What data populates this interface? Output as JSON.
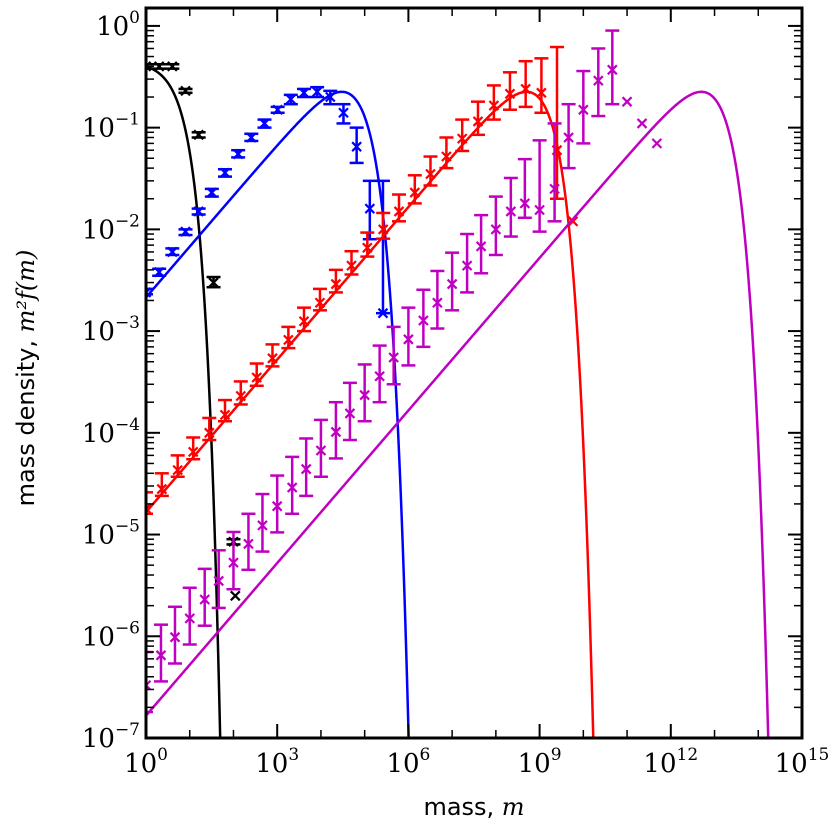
{
  "chart_data": {
    "type": "scatter",
    "title": "",
    "xlabel_text": "mass, ",
    "xlabel_var": "m",
    "ylabel_text": "mass density, ",
    "ylabel_var": "m²f(m)",
    "x_scale": "log",
    "y_scale": "log",
    "xlim": [
      1,
      1000000000000000.0
    ],
    "ylim": [
      1e-07,
      1.5
    ],
    "x_ticks": [
      {
        "value": 1,
        "base": "10",
        "exp": "0"
      },
      {
        "value": 1000,
        "base": "10",
        "exp": "3"
      },
      {
        "value": 1000000,
        "base": "10",
        "exp": "6"
      },
      {
        "value": 1000000000,
        "base": "10",
        "exp": "9"
      },
      {
        "value": 1000000000000,
        "base": "10",
        "exp": "12"
      },
      {
        "value": 1000000000000000,
        "base": "10",
        "exp": "15"
      }
    ],
    "y_ticks": [
      {
        "value": 1e-07,
        "base": "10",
        "exp": "−7"
      },
      {
        "value": 1e-06,
        "base": "10",
        "exp": "−6"
      },
      {
        "value": 1e-05,
        "base": "10",
        "exp": "−5"
      },
      {
        "value": 0.0001,
        "base": "10",
        "exp": "−4"
      },
      {
        "value": 0.001,
        "base": "10",
        "exp": "−3"
      },
      {
        "value": 0.01,
        "base": "10",
        "exp": "−2"
      },
      {
        "value": 0.1,
        "base": "10",
        "exp": "−1"
      },
      {
        "value": 1,
        "base": "10",
        "exp": "0"
      }
    ],
    "grid": false,
    "series": [
      {
        "color": "#000000",
        "curve": {
          "model": "exp_cutoff",
          "peak_y": 0.45,
          "x_scale": 2.0,
          "ylim_low": 1e-07
        },
        "points": [
          {
            "x": 1.0,
            "y": 0.4,
            "lo": 0.38,
            "hi": 0.42
          },
          {
            "x": 2.0,
            "y": 0.4,
            "lo": 0.38,
            "hi": 0.42
          },
          {
            "x": 4.0,
            "y": 0.4,
            "lo": 0.38,
            "hi": 0.42
          },
          {
            "x": 8.0,
            "y": 0.23,
            "lo": 0.22,
            "hi": 0.24
          },
          {
            "x": 16.0,
            "y": 0.085,
            "lo": 0.08,
            "hi": 0.09
          },
          {
            "x": 35.0,
            "y": 0.003,
            "lo": 0.0027,
            "hi": 0.0034
          },
          {
            "x": 100.0,
            "y": 8.5e-06,
            "lo": 8e-06,
            "hi": 9e-06
          },
          {
            "x": 110.0,
            "y": 2.5e-06,
            "lo": 2.5e-06,
            "hi": 2.5e-06
          }
        ]
      },
      {
        "color": "#0000ff",
        "curve": {
          "model": "power_cutoff",
          "peak_y": 0.225,
          "x_peak": 30000,
          "ylim_low": 1e-07
        },
        "points": [
          {
            "x": 1.0,
            "y": 0.0024,
            "lo": 0.0023,
            "hi": 0.0026
          },
          {
            "x": 2.0,
            "y": 0.0038,
            "lo": 0.0035,
            "hi": 0.0041
          },
          {
            "x": 4.0,
            "y": 0.006,
            "lo": 0.0056,
            "hi": 0.0065
          },
          {
            "x": 8.0,
            "y": 0.0095,
            "lo": 0.0088,
            "hi": 0.01
          },
          {
            "x": 16.0,
            "y": 0.015,
            "lo": 0.014,
            "hi": 0.016
          },
          {
            "x": 32.0,
            "y": 0.023,
            "lo": 0.021,
            "hi": 0.025
          },
          {
            "x": 64.0,
            "y": 0.036,
            "lo": 0.033,
            "hi": 0.039
          },
          {
            "x": 128.0,
            "y": 0.055,
            "lo": 0.051,
            "hi": 0.06
          },
          {
            "x": 256.0,
            "y": 0.08,
            "lo": 0.074,
            "hi": 0.087
          },
          {
            "x": 512.0,
            "y": 0.11,
            "lo": 0.1,
            "hi": 0.12
          },
          {
            "x": 1024.0,
            "y": 0.15,
            "lo": 0.14,
            "hi": 0.16
          },
          {
            "x": 2048.0,
            "y": 0.19,
            "lo": 0.17,
            "hi": 0.21
          },
          {
            "x": 4096.0,
            "y": 0.22,
            "lo": 0.2,
            "hi": 0.24
          },
          {
            "x": 8192.0,
            "y": 0.225,
            "lo": 0.2,
            "hi": 0.25
          },
          {
            "x": 16384.0,
            "y": 0.2,
            "lo": 0.17,
            "hi": 0.23
          },
          {
            "x": 32768.0,
            "y": 0.14,
            "lo": 0.11,
            "hi": 0.17
          },
          {
            "x": 65536.0,
            "y": 0.065,
            "lo": 0.045,
            "hi": 0.1
          },
          {
            "x": 131072.0,
            "y": 0.016,
            "lo": 0.008,
            "hi": 0.03
          },
          {
            "x": 262144.0,
            "y": 0.0015,
            "lo": 0.0015,
            "hi": 0.03
          }
        ]
      },
      {
        "color": "#ff0000",
        "curve": {
          "model": "power_cutoff",
          "peak_y": 0.225,
          "x_peak": 500000000.0,
          "ylim_low": 1e-07
        },
        "points": [
          {
            "x": 1.0,
            "y": 1.8e-05,
            "lo": 1.6e-05,
            "hi": 2.6e-05
          },
          {
            "x": 2.3,
            "y": 2.8e-05,
            "lo": 2.4e-05,
            "hi": 4e-05
          },
          {
            "x": 5.3,
            "y": 4.3e-05,
            "lo": 3.7e-05,
            "hi": 6e-05
          },
          {
            "x": 12.0,
            "y": 6.5e-05,
            "lo": 5.5e-05,
            "hi": 9e-05
          },
          {
            "x": 28.0,
            "y": 0.0001,
            "lo": 8.5e-05,
            "hi": 0.00014
          },
          {
            "x": 64.0,
            "y": 0.00015,
            "lo": 0.00013,
            "hi": 0.00021
          },
          {
            "x": 147.0,
            "y": 0.00023,
            "lo": 0.00019,
            "hi": 0.00032
          },
          {
            "x": 340.0,
            "y": 0.00035,
            "lo": 0.00029,
            "hi": 0.00048
          },
          {
            "x": 780.0,
            "y": 0.00054,
            "lo": 0.00045,
            "hi": 0.00074
          },
          {
            "x": 1800.0,
            "y": 0.00082,
            "lo": 0.00068,
            "hi": 0.0011
          },
          {
            "x": 4100.0,
            "y": 0.00125,
            "lo": 0.001,
            "hi": 0.0017
          },
          {
            "x": 9500.0,
            "y": 0.0019,
            "lo": 0.0016,
            "hi": 0.0026
          },
          {
            "x": 22000.0,
            "y": 0.0029,
            "lo": 0.0024,
            "hi": 0.004
          },
          {
            "x": 50000.0,
            "y": 0.0044,
            "lo": 0.0036,
            "hi": 0.0061
          },
          {
            "x": 115000.0,
            "y": 0.0066,
            "lo": 0.0054,
            "hi": 0.0093
          },
          {
            "x": 265000.0,
            "y": 0.01,
            "lo": 0.0081,
            "hi": 0.0145
          },
          {
            "x": 610000.0,
            "y": 0.015,
            "lo": 0.012,
            "hi": 0.022
          },
          {
            "x": 1400000.0,
            "y": 0.023,
            "lo": 0.018,
            "hi": 0.034
          },
          {
            "x": 3200000.0,
            "y": 0.035,
            "lo": 0.027,
            "hi": 0.052
          },
          {
            "x": 7400000.0,
            "y": 0.052,
            "lo": 0.04,
            "hi": 0.08
          },
          {
            "x": 17000000.0,
            "y": 0.078,
            "lo": 0.059,
            "hi": 0.12
          },
          {
            "x": 39000000.0,
            "y": 0.115,
            "lo": 0.085,
            "hi": 0.18
          },
          {
            "x": 90000000.0,
            "y": 0.165,
            "lo": 0.12,
            "hi": 0.26
          },
          {
            "x": 210000000.0,
            "y": 0.215,
            "lo": 0.15,
            "hi": 0.35
          },
          {
            "x": 480000000.0,
            "y": 0.24,
            "lo": 0.16,
            "hi": 0.45
          },
          {
            "x": 1100000000.0,
            "y": 0.22,
            "lo": 0.14,
            "hi": 0.48
          },
          {
            "x": 2500000000.0,
            "y": 0.06,
            "lo": 0.02,
            "hi": 0.62
          },
          {
            "x": 5800000000.0,
            "y": 0.012,
            "lo": 0.012,
            "hi": 0.012
          }
        ]
      },
      {
        "color": "#c000c0",
        "curve": {
          "model": "power_cutoff",
          "peak_y": 0.225,
          "x_peak": 5000000000000.0,
          "ylim_low": 1e-07
        },
        "points": [
          {
            "x": 1.0,
            "y": 3.3e-07,
            "lo": 1.8e-07,
            "hi": 7e-07
          },
          {
            "x": 2.2,
            "y": 6.5e-07,
            "lo": 3.6e-07,
            "hi": 1.3e-06
          },
          {
            "x": 4.6,
            "y": 9.8e-07,
            "lo": 5.4e-07,
            "hi": 1.95e-06
          },
          {
            "x": 10.0,
            "y": 1.5e-06,
            "lo": 8.3e-07,
            "hi": 3e-06
          },
          {
            "x": 22.0,
            "y": 2.3e-06,
            "lo": 1.27e-06,
            "hi": 4.6e-06
          },
          {
            "x": 46.0,
            "y": 3.5e-06,
            "lo": 1.9e-06,
            "hi": 7e-06
          },
          {
            "x": 100.0,
            "y": 5.3e-06,
            "lo": 2.9e-06,
            "hi": 1.06e-05
          },
          {
            "x": 220.0,
            "y": 8.1e-06,
            "lo": 4.5e-06,
            "hi": 1.6e-05
          },
          {
            "x": 460.0,
            "y": 1.23e-05,
            "lo": 6.8e-06,
            "hi": 2.5e-05
          },
          {
            "x": 1000.0,
            "y": 1.9e-05,
            "lo": 1.05e-05,
            "hi": 3.8e-05
          },
          {
            "x": 2200.0,
            "y": 2.9e-05,
            "lo": 1.6e-05,
            "hi": 5.8e-05
          },
          {
            "x": 4600.0,
            "y": 4.4e-05,
            "lo": 2.4e-05,
            "hi": 8.8e-05
          },
          {
            "x": 10000.0,
            "y": 6.7e-05,
            "lo": 3.7e-05,
            "hi": 0.000134
          },
          {
            "x": 22000.0,
            "y": 0.000102,
            "lo": 5.6e-05,
            "hi": 0.0002
          },
          {
            "x": 46000.0,
            "y": 0.000155,
            "lo": 8.5e-05,
            "hi": 0.00031
          },
          {
            "x": 100000.0,
            "y": 0.000235,
            "lo": 0.00013,
            "hi": 0.00047
          },
          {
            "x": 220000.0,
            "y": 0.00036,
            "lo": 0.0002,
            "hi": 0.00072
          },
          {
            "x": 460000.0,
            "y": 0.00055,
            "lo": 0.0003,
            "hi": 0.0011
          },
          {
            "x": 1000000.0,
            "y": 0.00083,
            "lo": 0.00046,
            "hi": 0.0017
          },
          {
            "x": 2200000.0,
            "y": 0.00127,
            "lo": 0.0007,
            "hi": 0.00255
          },
          {
            "x": 4600000.0,
            "y": 0.0019,
            "lo": 0.00106,
            "hi": 0.0039
          },
          {
            "x": 10000000.0,
            "y": 0.0029,
            "lo": 0.0016,
            "hi": 0.0059
          },
          {
            "x": 22000000.0,
            "y": 0.0044,
            "lo": 0.0024,
            "hi": 0.009
          },
          {
            "x": 46000000.0,
            "y": 0.0068,
            "lo": 0.0037,
            "hi": 0.0138
          },
          {
            "x": 100000000.0,
            "y": 0.01,
            "lo": 0.0056,
            "hi": 0.021
          },
          {
            "x": 220000000.0,
            "y": 0.015,
            "lo": 0.0085,
            "hi": 0.032
          },
          {
            "x": 460000000.0,
            "y": 0.018,
            "lo": 0.013,
            "hi": 0.049
          },
          {
            "x": 1000000000.0,
            "y": 0.0155,
            "lo": 0.0095,
            "hi": 0.075
          },
          {
            "x": 2200000000.0,
            "y": 0.025,
            "lo": 0.012,
            "hi": 0.11
          },
          {
            "x": 4600000000.0,
            "y": 0.08,
            "lo": 0.04,
            "hi": 0.17
          },
          {
            "x": 10000000000.0,
            "y": 0.15,
            "lo": 0.07,
            "hi": 0.36
          },
          {
            "x": 22000000000.0,
            "y": 0.29,
            "lo": 0.13,
            "hi": 0.6
          },
          {
            "x": 46000000000.0,
            "y": 0.37,
            "lo": 0.17,
            "hi": 0.9
          },
          {
            "x": 100000000000.0,
            "y": 0.18,
            "lo": 0.18,
            "hi": 0.18
          },
          {
            "x": 220000000000.0,
            "y": 0.11,
            "lo": 0.11,
            "hi": 0.11
          },
          {
            "x": 480000000000.0,
            "y": 0.07,
            "lo": 0.07,
            "hi": 0.07
          }
        ]
      }
    ]
  }
}
